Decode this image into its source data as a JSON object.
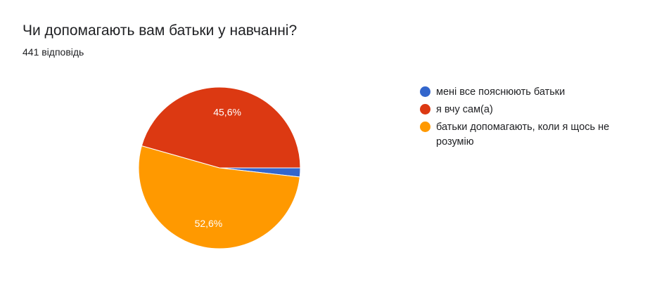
{
  "header": {
    "title": "Чи допомагають вам батьки у навчанні?",
    "subtitle": "441 відповідь"
  },
  "chart_data": {
    "type": "pie",
    "title": "Чи допомагають вам батьки у навчанні?",
    "slices": [
      {
        "label": "мені все пояснюють батьки",
        "value": 1.8,
        "value_label": "",
        "color": "#3366cc"
      },
      {
        "label": "я вчу сам(а)",
        "value": 45.6,
        "value_label": "45,6%",
        "color": "#dc3912"
      },
      {
        "label": "батьки допомагають, коли я щось не розумію",
        "value": 52.6,
        "value_label": "52,6%",
        "color": "#ff9900"
      }
    ],
    "legend_position": "right"
  }
}
